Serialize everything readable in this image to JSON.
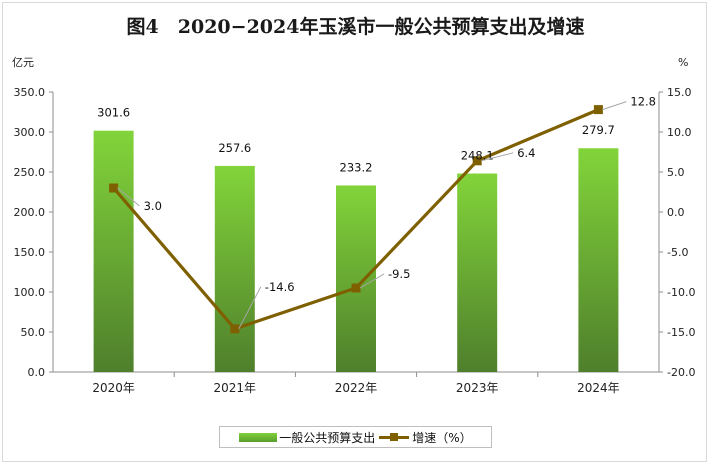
{
  "chart_data": {
    "type": "bar+line",
    "title": "图4　2020−2024年玉溪市一般公共预算支出及增速",
    "categories": [
      "2020年",
      "2021年",
      "2022年",
      "2023年",
      "2024年"
    ],
    "left_axis": {
      "unit": "亿元",
      "ylim": [
        0,
        350
      ],
      "ticks": [
        "0.0",
        "50.0",
        "100.0",
        "150.0",
        "200.0",
        "250.0",
        "300.0",
        "350.0"
      ]
    },
    "right_axis": {
      "unit": "%",
      "ylim": [
        -20,
        15
      ],
      "ticks": [
        "-20.0",
        "-15.0",
        "-10.0",
        "-5.0",
        "0.0",
        "5.0",
        "10.0",
        "15.0"
      ]
    },
    "series": [
      {
        "name": "一般公共预算支出",
        "type": "bar",
        "axis": "left",
        "color": "#6cbf2f",
        "values": [
          301.6,
          257.6,
          233.2,
          248.1,
          279.7
        ],
        "labels": [
          "301.6",
          "257.6",
          "233.2",
          "248.1",
          "279.7"
        ]
      },
      {
        "name": "增速（%）",
        "type": "line",
        "axis": "right",
        "color": "#7f6000",
        "values": [
          3.0,
          -14.6,
          -9.5,
          6.4,
          12.8
        ],
        "labels": [
          "3.0",
          "-14.6",
          "-9.5",
          "6.4",
          "12.8"
        ]
      }
    ]
  }
}
